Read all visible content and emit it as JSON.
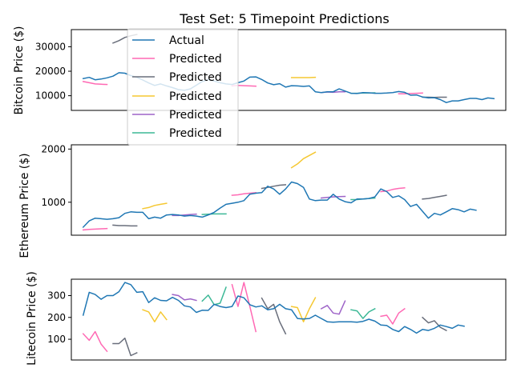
{
  "figure": {
    "title": "Test Set: 5 Timepoint Predictions",
    "legend": {
      "placement": "top-left (over first panel)",
      "entries": [
        {
          "label": "Actual",
          "color": "#1f77b4"
        },
        {
          "label": "Predicted",
          "color": "#ff69b4"
        },
        {
          "label": "Predicted",
          "color": "#696e7b"
        },
        {
          "label": "Predicted",
          "color": "#f5c832"
        },
        {
          "label": "Predicted",
          "color": "#9e64c8"
        },
        {
          "label": "Predicted",
          "color": "#3cb896"
        }
      ]
    }
  },
  "chart_data": [
    {
      "type": "line",
      "ylabel": "Bitcoin Price ($)",
      "yticks": [
        10000,
        20000,
        30000
      ],
      "ytick_labels": [
        "10000",
        "20000",
        "30000"
      ],
      "ylim": [
        4000,
        37000
      ],
      "xlim": [
        -2,
        71
      ],
      "grid": false,
      "actual": {
        "color": "#1f77b4",
        "x_start": 0,
        "values": [
          17000,
          17500,
          16500,
          16800,
          17300,
          18000,
          19400,
          19200,
          18200,
          17500,
          16400,
          15200,
          14200,
          14800,
          14000,
          13300,
          12500,
          12200,
          12800,
          14300,
          15800,
          16500,
          16000,
          15300,
          14800,
          14600,
          15300,
          16000,
          17600,
          17700,
          16600,
          15200,
          14500,
          14900,
          13500,
          14100,
          14000,
          13800,
          14000,
          11600,
          11300,
          11600,
          11600,
          12800,
          11900,
          11000,
          10900,
          11300,
          11200,
          11000,
          11000,
          11100,
          11300,
          11700,
          11400,
          10200,
          10300,
          9500,
          9100,
          9200,
          8400,
          7200,
          7900,
          7900,
          8400,
          8900,
          8900,
          8400,
          9100,
          8800
        ]
      },
      "predicted": [
        {
          "color": "#ff69b4",
          "x_start": 0,
          "values": [
            15800,
            15300,
            14800,
            14700,
            14600
          ]
        },
        {
          "color": "#696e7b",
          "x_start": 5,
          "values": [
            31500,
            32500,
            33800,
            34500,
            35000
          ]
        },
        {
          "color": "#f5c832",
          "x_start": 35,
          "values": [
            17400,
            17400,
            17400,
            17400,
            17500
          ]
        },
        {
          "color": "#9e64c8",
          "x_start": 40,
          "values": [
            11300,
            11500,
            11400,
            11600,
            11600
          ]
        },
        {
          "color": "#3cb896",
          "x_start": 45,
          "values": [
            11000,
            11000,
            11100,
            11100,
            11200
          ]
        },
        {
          "color": "#ff69b4",
          "x_start": 25,
          "values": [
            14000,
            14200,
            14100,
            14000,
            13900
          ]
        },
        {
          "color": "#ff69b4",
          "x_start": 53,
          "values": [
            10800,
            10800,
            10900,
            11000,
            11100
          ]
        },
        {
          "color": "#696e7b",
          "x_start": 57,
          "values": [
            9400,
            9400,
            9300,
            9400,
            9400
          ]
        }
      ]
    },
    {
      "type": "line",
      "ylabel": "Ethereum Price ($)",
      "yticks": [
        1000,
        2000
      ],
      "ytick_labels": [
        "1000",
        "2000"
      ],
      "ylim": [
        380,
        2080
      ],
      "xlim": [
        -2,
        71
      ],
      "grid": false,
      "actual": {
        "color": "#1f77b4",
        "x_start": 0,
        "values": [
          530,
          650,
          700,
          690,
          680,
          690,
          710,
          790,
          820,
          810,
          810,
          690,
          720,
          700,
          760,
          770,
          760,
          740,
          750,
          740,
          720,
          760,
          810,
          890,
          960,
          980,
          1000,
          1030,
          1150,
          1170,
          1180,
          1300,
          1250,
          1150,
          1250,
          1380,
          1350,
          1280,
          1060,
          1030,
          1040,
          1040,
          1150,
          1060,
          1010,
          990,
          1060,
          1060,
          1070,
          1100,
          1250,
          1200,
          1090,
          1120,
          1050,
          920,
          960,
          830,
          700,
          790,
          760,
          820,
          880,
          860,
          820,
          870,
          850
        ]
      },
      "predicted": [
        {
          "color": "#ff69b4",
          "x_start": 0,
          "values": [
            480,
            490,
            495,
            500,
            505
          ]
        },
        {
          "color": "#696e7b",
          "x_start": 5,
          "values": [
            570,
            560,
            560,
            555,
            555
          ]
        },
        {
          "color": "#f5c832",
          "x_start": 10,
          "values": [
            880,
            900,
            940,
            960,
            980
          ]
        },
        {
          "color": "#9e64c8",
          "x_start": 15,
          "values": [
            750,
            750,
            760,
            770,
            775
          ]
        },
        {
          "color": "#3cb896",
          "x_start": 20,
          "values": [
            770,
            775,
            780,
            780,
            780
          ]
        },
        {
          "color": "#ff69b4",
          "x_start": 25,
          "values": [
            1130,
            1140,
            1160,
            1170,
            1180
          ]
        },
        {
          "color": "#696e7b",
          "x_start": 30,
          "values": [
            1260,
            1280,
            1300,
            1320,
            1330
          ]
        },
        {
          "color": "#f5c832",
          "x_start": 35,
          "values": [
            1650,
            1720,
            1820,
            1880,
            1940
          ]
        },
        {
          "color": "#9e64c8",
          "x_start": 40,
          "values": [
            1080,
            1090,
            1100,
            1105,
            1110
          ]
        },
        {
          "color": "#3cb896",
          "x_start": 45,
          "values": [
            1050,
            1050,
            1060,
            1070,
            1080
          ]
        },
        {
          "color": "#ff69b4",
          "x_start": 50,
          "values": [
            1200,
            1210,
            1240,
            1260,
            1270
          ]
        },
        {
          "color": "#696e7b",
          "x_start": 57,
          "values": [
            1060,
            1070,
            1090,
            1110,
            1130
          ]
        }
      ]
    },
    {
      "type": "line",
      "ylabel": "Litecoin Price ($)",
      "yticks": [
        100,
        200,
        300
      ],
      "ytick_labels": [
        "100",
        "200",
        "300"
      ],
      "ylim": [
        5,
        375
      ],
      "xlim": [
        -2,
        71
      ],
      "grid": false,
      "actual": {
        "color": "#1f77b4",
        "x_start": 0,
        "values": [
          210,
          315,
          305,
          283,
          300,
          300,
          318,
          360,
          350,
          315,
          318,
          268,
          290,
          278,
          276,
          292,
          278,
          253,
          248,
          223,
          233,
          232,
          260,
          250,
          245,
          250,
          298,
          290,
          258,
          248,
          253,
          235,
          240,
          260,
          240,
          235,
          195,
          193,
          195,
          210,
          195,
          180,
          178,
          180,
          180,
          180,
          178,
          182,
          192,
          183,
          165,
          163,
          145,
          135,
          158,
          145,
          128,
          145,
          140,
          150,
          165,
          158,
          150,
          165,
          160
        ]
      },
      "predicted": [
        {
          "color": "#ff69b4",
          "x_start": 0,
          "values": [
            125,
            95,
            135,
            78,
            45
          ]
        },
        {
          "color": "#696e7b",
          "x_start": 5,
          "values": [
            80,
            80,
            105,
            25,
            38
          ]
        },
        {
          "color": "#f5c832",
          "x_start": 10,
          "values": [
            235,
            225,
            180,
            225,
            190
          ]
        },
        {
          "color": "#9e64c8",
          "x_start": 15,
          "values": [
            305,
            300,
            280,
            285,
            278
          ]
        },
        {
          "color": "#3cb896",
          "x_start": 20,
          "values": [
            275,
            302,
            258,
            265,
            338
          ]
        },
        {
          "color": "#ff69b4",
          "x_start": 25,
          "values": [
            350,
            250,
            360,
            250,
            135
          ]
        },
        {
          "color": "#696e7b",
          "x_start": 30,
          "values": [
            288,
            240,
            260,
            180,
            125
          ]
        },
        {
          "color": "#f5c832",
          "x_start": 35,
          "values": [
            250,
            245,
            180,
            240,
            290
          ]
        },
        {
          "color": "#9e64c8",
          "x_start": 40,
          "values": [
            240,
            255,
            220,
            215,
            275
          ]
        },
        {
          "color": "#3cb896",
          "x_start": 45,
          "values": [
            235,
            230,
            195,
            225,
            240
          ]
        },
        {
          "color": "#ff69b4",
          "x_start": 50,
          "values": [
            205,
            210,
            170,
            220,
            240
          ]
        },
        {
          "color": "#696e7b",
          "x_start": 57,
          "values": [
            200,
            175,
            185,
            155,
            140
          ]
        }
      ]
    }
  ]
}
